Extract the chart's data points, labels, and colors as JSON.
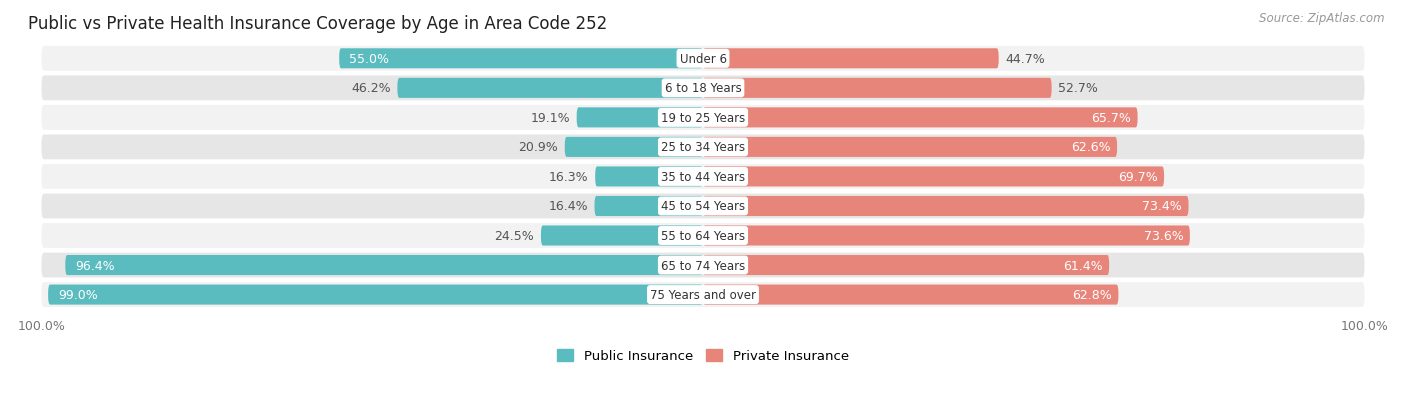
{
  "title": "Public vs Private Health Insurance Coverage by Age in Area Code 252",
  "source": "Source: ZipAtlas.com",
  "categories": [
    "Under 6",
    "6 to 18 Years",
    "19 to 25 Years",
    "25 to 34 Years",
    "35 to 44 Years",
    "45 to 54 Years",
    "55 to 64 Years",
    "65 to 74 Years",
    "75 Years and over"
  ],
  "public_values": [
    55.0,
    46.2,
    19.1,
    20.9,
    16.3,
    16.4,
    24.5,
    96.4,
    99.0
  ],
  "private_values": [
    44.7,
    52.7,
    65.7,
    62.6,
    69.7,
    73.4,
    73.6,
    61.4,
    62.8
  ],
  "public_color": "#5bbcbf",
  "private_color": "#e8857a",
  "row_bg_even": "#f2f2f2",
  "row_bg_odd": "#e6e6e6",
  "title_fontsize": 12,
  "label_fontsize": 9,
  "source_fontsize": 8.5,
  "max_value": 100.0,
  "figsize": [
    14.06,
    4.14
  ],
  "private_inside_threshold": 60,
  "public_inside_threshold": 50
}
